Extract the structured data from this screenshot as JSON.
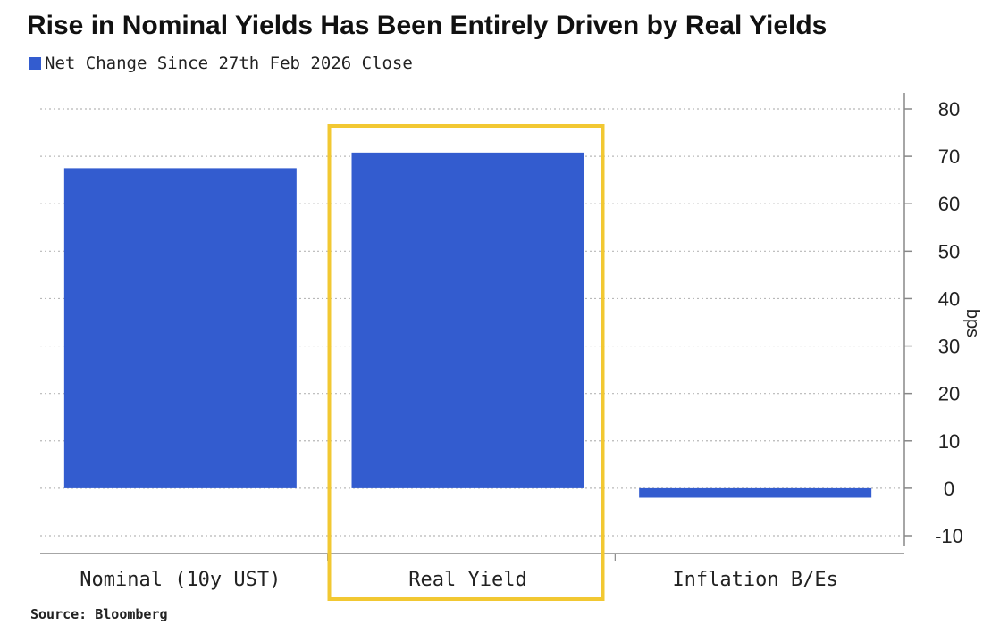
{
  "chart_data": {
    "type": "bar",
    "title": "Rise in Nominal Yields Has Been Entirely Driven by Real Yields",
    "categories": [
      "Nominal (10y UST)",
      "Real Yield",
      "Inflation B/Es"
    ],
    "series": [
      {
        "name": "Net Change Since 27th Feb 2026 Close",
        "values": [
          67.5,
          70.8,
          -2
        ]
      }
    ],
    "xlabel": "",
    "ylabel": "bps",
    "ylim": [
      -10,
      80
    ],
    "yticks": [
      80,
      70,
      60,
      50,
      40,
      30,
      20,
      10,
      0,
      -10
    ],
    "y_axis_side": "right",
    "grid": true,
    "legend": "top-left",
    "highlighted_category": "Real Yield",
    "source": "Source: Bloomberg"
  },
  "colors": {
    "bar": "#335ccf",
    "highlight_box": "#f2c832",
    "grid": "#b8b8b8",
    "axis": "#888888"
  }
}
